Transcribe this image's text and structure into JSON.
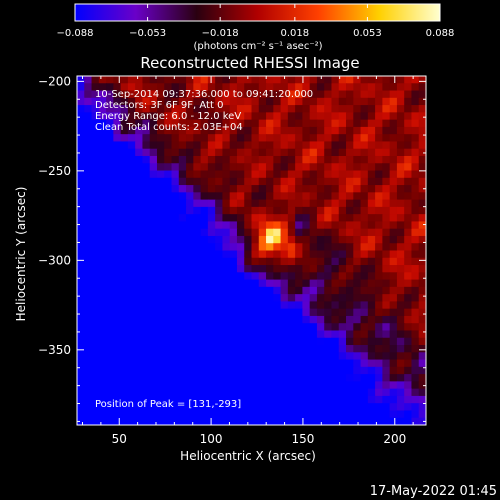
{
  "chart_data": {
    "type": "heatmap",
    "title": "Reconstructed RHESSI Image",
    "colorbar": {
      "min": -0.088,
      "max": 0.088,
      "tick_labels": [
        "−0.088",
        "−0.053",
        "−0.018",
        "0.018",
        "0.053",
        "0.088"
      ],
      "tick_values": [
        -0.088,
        -0.053,
        -0.018,
        0.018,
        0.053,
        0.088
      ],
      "units_label": "(photons cm⁻² s⁻¹ asec⁻²)",
      "colors": [
        "#0000ff",
        "#6a00c8",
        "#2a0010",
        "#b00000",
        "#ff4000",
        "#ffd000",
        "#ffffd0"
      ]
    },
    "xlabel": "Heliocentric X (arcsec)",
    "ylabel": "Heliocentric Y (arcsec)",
    "xlim": [
      27,
      217
    ],
    "ylim": [
      -392,
      -197
    ],
    "xticks": [
      50,
      100,
      150,
      200
    ],
    "yticks": [
      -200,
      -250,
      -300,
      -350
    ],
    "annotations": [
      "10-Sep-2014 09:37:36.000 to 09:41:20.000",
      "Detectors: 3F 6F 9F, Att 0",
      "Energy Range: 6.0 - 12.0 keV",
      "Clean    Total counts: 2.03E+04"
    ],
    "peak_label": "Position of Peak = [131,-293]",
    "peak": {
      "x": 131,
      "y": -293
    }
  },
  "footer": {
    "timestamp": "17-May-2022 01:45"
  }
}
